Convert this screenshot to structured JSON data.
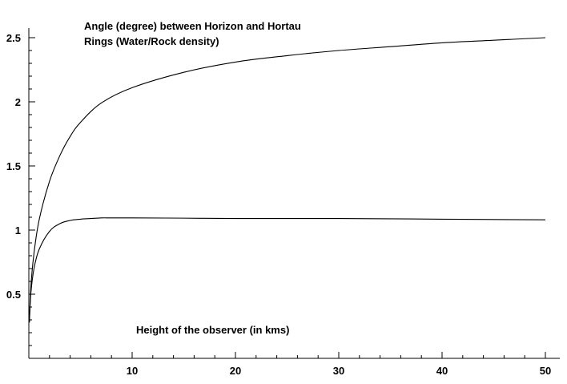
{
  "chart_data": {
    "type": "line",
    "title": "Angle (degree) between Horizon and Hortau",
    "subtitle": "Rings  (Water/Rock density)",
    "xlabel": "Height of the observer (in kms)",
    "ylabel": "",
    "xlim": [
      0,
      50
    ],
    "ylim": [
      0,
      2.5
    ],
    "x_ticks": [
      10,
      20,
      30,
      40,
      50
    ],
    "y_ticks": [
      0.5,
      1,
      1.5,
      2,
      2.5
    ],
    "x_tick_labels": [
      "10",
      "20",
      "30",
      "40",
      "50"
    ],
    "y_tick_labels": [
      "0.5",
      "1",
      "1.5",
      "2",
      "2.5"
    ],
    "grid": false,
    "legend": "none",
    "colors": {
      "line": "#000000",
      "axis": "#000000",
      "background": "#ffffff"
    },
    "series": [
      {
        "x": [
          0.05,
          0.2,
          0.5,
          1,
          2,
          3,
          4,
          5,
          7,
          10,
          15,
          20,
          25,
          30,
          35,
          40,
          45,
          50
        ],
        "values": [
          0.28,
          0.56,
          0.82,
          1.08,
          1.38,
          1.58,
          1.73,
          1.84,
          1.99,
          2.11,
          2.23,
          2.31,
          2.36,
          2.4,
          2.43,
          2.46,
          2.48,
          2.5
        ]
      },
      {
        "x": [
          0.05,
          0.2,
          0.5,
          1,
          2,
          3,
          4,
          5,
          6,
          7,
          8,
          10,
          15,
          20,
          30,
          40,
          50
        ],
        "values": [
          0.28,
          0.51,
          0.7,
          0.85,
          0.99,
          1.05,
          1.075,
          1.085,
          1.09,
          1.095,
          1.095,
          1.095,
          1.093,
          1.09,
          1.09,
          1.085,
          1.08
        ]
      }
    ]
  }
}
